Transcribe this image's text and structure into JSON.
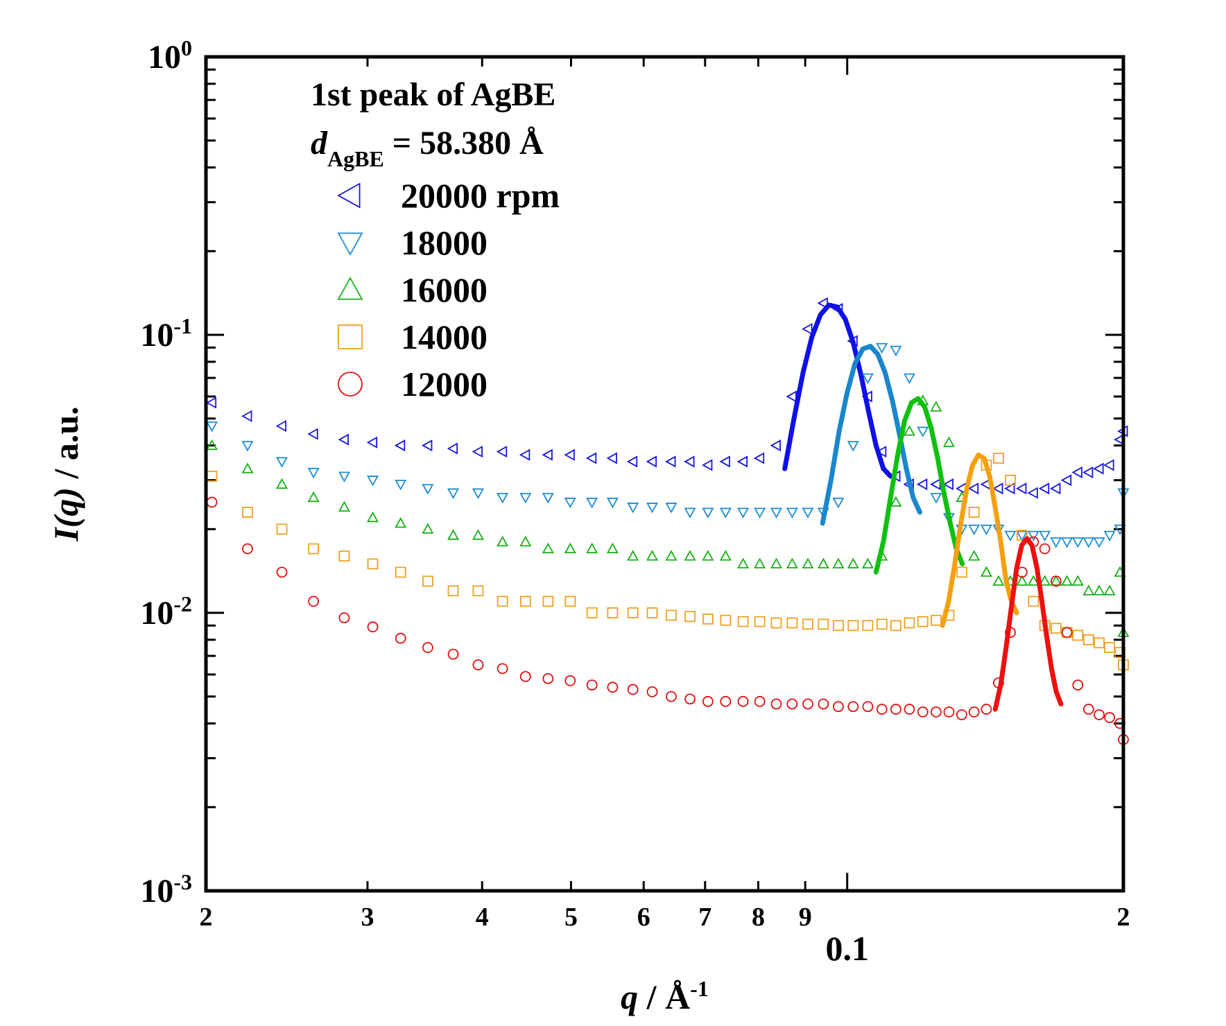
{
  "chart_data": {
    "type": "scatter",
    "x_scale": "log",
    "y_scale": "log",
    "xlim": [
      0.02,
      0.2
    ],
    "ylim": [
      0.001,
      1
    ],
    "xlabel_main": "q",
    "xlabel_unit": "Å",
    "xlabel_exp": "-1",
    "ylabel_main": "I(q)",
    "ylabel_rest": " / a.u.",
    "title_line1": "1st peak of AgBE",
    "title_line2_main": "d",
    "title_line2_sub": "AgBE",
    "title_line2_rest": " = 58.380 Å",
    "y_ticks": [
      {
        "value": 1,
        "label": "10",
        "exp": "0"
      },
      {
        "value": 0.1,
        "label": "10",
        "exp": "-1"
      },
      {
        "value": 0.01,
        "label": "10",
        "exp": "-2"
      },
      {
        "value": 0.001,
        "label": "10",
        "exp": "-3"
      }
    ],
    "x_ticks": [
      {
        "value": 0.02,
        "label": "2"
      },
      {
        "value": 0.03,
        "label": "3"
      },
      {
        "value": 0.04,
        "label": "4"
      },
      {
        "value": 0.05,
        "label": "5"
      },
      {
        "value": 0.06,
        "label": "6"
      },
      {
        "value": 0.07,
        "label": "7"
      },
      {
        "value": 0.08,
        "label": "8"
      },
      {
        "value": 0.09,
        "label": "9"
      },
      {
        "value": 0.2,
        "label": "2"
      }
    ],
    "x_major_label": {
      "value": 0.1,
      "label": "0.1"
    },
    "legend_placement": "top-left",
    "series": [
      {
        "name": "20000 rpm",
        "marker": "triangle-left",
        "color": "#1515e0",
        "fit_color": "#1010e8",
        "x": [
          0.0203,
          0.0222,
          0.0242,
          0.0262,
          0.0283,
          0.0304,
          0.0326,
          0.0349,
          0.0372,
          0.0396,
          0.0421,
          0.0446,
          0.0472,
          0.0499,
          0.0527,
          0.0555,
          0.0584,
          0.0613,
          0.0643,
          0.0674,
          0.0705,
          0.0737,
          0.077,
          0.0803,
          0.0837,
          0.0871,
          0.0906,
          0.0942,
          0.0978,
          0.1015,
          0.1053,
          0.1091,
          0.113,
          0.1169,
          0.1209,
          0.125,
          0.1291,
          0.1333,
          0.1375,
          0.1418,
          0.1462,
          0.1506,
          0.1551,
          0.1596,
          0.1642,
          0.1689,
          0.1736,
          0.1784,
          0.1833,
          0.1882,
          0.1932,
          0.1983,
          0.2
        ],
        "y": [
          0.057,
          0.051,
          0.047,
          0.044,
          0.042,
          0.041,
          0.04,
          0.04,
          0.039,
          0.038,
          0.038,
          0.037,
          0.037,
          0.037,
          0.036,
          0.036,
          0.035,
          0.035,
          0.035,
          0.035,
          0.034,
          0.035,
          0.035,
          0.036,
          0.04,
          0.06,
          0.105,
          0.13,
          0.124,
          0.095,
          0.06,
          0.038,
          0.031,
          0.029,
          0.029,
          0.029,
          0.029,
          0.028,
          0.028,
          0.029,
          0.028,
          0.028,
          0.028,
          0.027,
          0.028,
          0.028,
          0.03,
          0.032,
          0.032,
          0.033,
          0.034,
          0.042,
          0.045
        ],
        "fit_x": [
          0.0855,
          0.0875,
          0.0895,
          0.0915,
          0.0935,
          0.0955,
          0.0975,
          0.0995,
          0.1015,
          0.1035,
          0.1055,
          0.1075,
          0.1095,
          0.1115
        ],
        "fit_y": [
          0.033,
          0.05,
          0.073,
          0.098,
          0.118,
          0.128,
          0.126,
          0.114,
          0.094,
          0.072,
          0.053,
          0.04,
          0.033,
          0.031
        ]
      },
      {
        "name": "18000",
        "marker": "triangle-down",
        "color": "#1c8bd0",
        "fit_color": "#1a86cc",
        "x": [
          0.0203,
          0.0222,
          0.0242,
          0.0262,
          0.0283,
          0.0304,
          0.0326,
          0.0349,
          0.0372,
          0.0396,
          0.0421,
          0.0446,
          0.0472,
          0.0499,
          0.0527,
          0.0555,
          0.0584,
          0.0613,
          0.0643,
          0.0674,
          0.0705,
          0.0737,
          0.077,
          0.0803,
          0.0837,
          0.0871,
          0.0906,
          0.0942,
          0.0978,
          0.1015,
          0.1053,
          0.1091,
          0.113,
          0.1169,
          0.1209,
          0.125,
          0.1291,
          0.1333,
          0.1375,
          0.1418,
          0.1462,
          0.1506,
          0.1551,
          0.1596,
          0.1642,
          0.1689,
          0.1736,
          0.1784,
          0.1833,
          0.1882,
          0.1932,
          0.1983,
          0.2
        ],
        "y": [
          0.047,
          0.04,
          0.035,
          0.032,
          0.031,
          0.03,
          0.029,
          0.028,
          0.027,
          0.027,
          0.026,
          0.026,
          0.026,
          0.025,
          0.025,
          0.025,
          0.024,
          0.024,
          0.024,
          0.023,
          0.023,
          0.023,
          0.023,
          0.023,
          0.023,
          0.023,
          0.023,
          0.023,
          0.025,
          0.04,
          0.07,
          0.09,
          0.088,
          0.07,
          0.045,
          0.026,
          0.022,
          0.02,
          0.02,
          0.02,
          0.02,
          0.019,
          0.019,
          0.019,
          0.019,
          0.018,
          0.018,
          0.018,
          0.018,
          0.018,
          0.019,
          0.02,
          0.027
        ],
        "fit_x": [
          0.094,
          0.096,
          0.098,
          0.1,
          0.102,
          0.104,
          0.106,
          0.108,
          0.11,
          0.112,
          0.114,
          0.116,
          0.118,
          0.12
        ],
        "fit_y": [
          0.021,
          0.03,
          0.045,
          0.062,
          0.079,
          0.089,
          0.091,
          0.085,
          0.073,
          0.058,
          0.044,
          0.033,
          0.026,
          0.023
        ]
      },
      {
        "name": "16000",
        "marker": "triangle-up",
        "color": "#16b016",
        "fit_color": "#10c010",
        "x": [
          0.0203,
          0.0222,
          0.0242,
          0.0262,
          0.0283,
          0.0304,
          0.0326,
          0.0349,
          0.0372,
          0.0396,
          0.0421,
          0.0446,
          0.0472,
          0.0499,
          0.0527,
          0.0555,
          0.0584,
          0.0613,
          0.0643,
          0.0674,
          0.0705,
          0.0737,
          0.077,
          0.0803,
          0.0837,
          0.0871,
          0.0906,
          0.0942,
          0.0978,
          0.1015,
          0.1053,
          0.1091,
          0.113,
          0.1169,
          0.1209,
          0.125,
          0.1291,
          0.1333,
          0.1375,
          0.1418,
          0.1462,
          0.1506,
          0.1551,
          0.1596,
          0.1642,
          0.1689,
          0.1736,
          0.1784,
          0.1833,
          0.1882,
          0.1932,
          0.1983,
          0.2
        ],
        "y": [
          0.04,
          0.033,
          0.029,
          0.026,
          0.024,
          0.022,
          0.021,
          0.02,
          0.019,
          0.019,
          0.018,
          0.018,
          0.017,
          0.017,
          0.017,
          0.017,
          0.016,
          0.016,
          0.016,
          0.016,
          0.016,
          0.016,
          0.015,
          0.015,
          0.015,
          0.015,
          0.015,
          0.015,
          0.015,
          0.015,
          0.015,
          0.016,
          0.025,
          0.045,
          0.058,
          0.055,
          0.041,
          0.026,
          0.016,
          0.014,
          0.013,
          0.013,
          0.013,
          0.013,
          0.013,
          0.013,
          0.013,
          0.013,
          0.012,
          0.012,
          0.012,
          0.014,
          0.0085
        ],
        "fit_x": [
          0.1075,
          0.1095,
          0.1115,
          0.1135,
          0.1155,
          0.1175,
          0.1195,
          0.1215,
          0.1235,
          0.1255,
          0.1275,
          0.1295,
          0.1315,
          0.1335
        ],
        "fit_y": [
          0.014,
          0.018,
          0.026,
          0.037,
          0.049,
          0.057,
          0.059,
          0.055,
          0.046,
          0.036,
          0.027,
          0.021,
          0.017,
          0.015
        ]
      },
      {
        "name": "14000",
        "marker": "square",
        "color": "#f0a020",
        "fit_color": "#f5a010",
        "x": [
          0.0203,
          0.0222,
          0.0242,
          0.0262,
          0.0283,
          0.0304,
          0.0326,
          0.0349,
          0.0372,
          0.0396,
          0.0421,
          0.0446,
          0.0472,
          0.0499,
          0.0527,
          0.0555,
          0.0584,
          0.0613,
          0.0643,
          0.0674,
          0.0705,
          0.0737,
          0.077,
          0.0803,
          0.0837,
          0.0871,
          0.0906,
          0.0942,
          0.0978,
          0.1015,
          0.1053,
          0.1091,
          0.113,
          0.1169,
          0.1209,
          0.125,
          0.1291,
          0.1333,
          0.1375,
          0.1418,
          0.1462,
          0.1506,
          0.1551,
          0.1596,
          0.1642,
          0.1689,
          0.1736,
          0.1784,
          0.1833,
          0.1882,
          0.1932,
          0.1983,
          0.2
        ],
        "y": [
          0.031,
          0.023,
          0.02,
          0.017,
          0.016,
          0.015,
          0.014,
          0.013,
          0.012,
          0.012,
          0.011,
          0.011,
          0.011,
          0.011,
          0.01,
          0.01,
          0.01,
          0.01,
          0.0098,
          0.0097,
          0.0095,
          0.0094,
          0.0093,
          0.0093,
          0.0092,
          0.0092,
          0.0091,
          0.0091,
          0.009,
          0.009,
          0.009,
          0.0091,
          0.009,
          0.0092,
          0.0093,
          0.0094,
          0.0098,
          0.014,
          0.023,
          0.034,
          0.036,
          0.03,
          0.019,
          0.011,
          0.009,
          0.0088,
          0.0085,
          0.0083,
          0.008,
          0.0078,
          0.0075,
          0.0072,
          0.0065
        ],
        "fit_x": [
          0.127,
          0.129,
          0.131,
          0.133,
          0.135,
          0.137,
          0.139,
          0.141,
          0.143,
          0.145,
          0.147,
          0.149,
          0.151,
          0.153
        ],
        "fit_y": [
          0.009,
          0.011,
          0.015,
          0.021,
          0.028,
          0.034,
          0.037,
          0.036,
          0.031,
          0.024,
          0.018,
          0.013,
          0.011,
          0.01
        ]
      },
      {
        "name": "12000",
        "marker": "circle",
        "color": "#e01010",
        "fit_color": "#ee1010",
        "x": [
          0.0203,
          0.0222,
          0.0242,
          0.0262,
          0.0283,
          0.0304,
          0.0326,
          0.0349,
          0.0372,
          0.0396,
          0.0421,
          0.0446,
          0.0472,
          0.0499,
          0.0527,
          0.0555,
          0.0584,
          0.0613,
          0.0643,
          0.0674,
          0.0705,
          0.0737,
          0.077,
          0.0803,
          0.0837,
          0.0871,
          0.0906,
          0.0942,
          0.0978,
          0.1015,
          0.1053,
          0.1091,
          0.113,
          0.1169,
          0.1209,
          0.125,
          0.1291,
          0.1333,
          0.1375,
          0.1418,
          0.1462,
          0.1506,
          0.1551,
          0.1596,
          0.1642,
          0.1689,
          0.1736,
          0.1784,
          0.1833,
          0.1882,
          0.1932,
          0.1983,
          0.2
        ],
        "y": [
          0.025,
          0.017,
          0.014,
          0.011,
          0.0096,
          0.0089,
          0.0081,
          0.0075,
          0.0071,
          0.0065,
          0.0063,
          0.0059,
          0.0058,
          0.0057,
          0.0055,
          0.0054,
          0.0053,
          0.0052,
          0.005,
          0.0049,
          0.0048,
          0.0048,
          0.0048,
          0.0048,
          0.0047,
          0.0047,
          0.0047,
          0.0047,
          0.0046,
          0.0046,
          0.0046,
          0.0045,
          0.0045,
          0.0045,
          0.0044,
          0.0044,
          0.0044,
          0.0043,
          0.0044,
          0.0045,
          0.0056,
          0.0085,
          0.014,
          0.018,
          0.017,
          0.013,
          0.0085,
          0.0055,
          0.0045,
          0.0043,
          0.0042,
          0.004,
          0.0035
        ],
        "fit_x": [
          0.145,
          0.147,
          0.149,
          0.151,
          0.153,
          0.155,
          0.157,
          0.159,
          0.161,
          0.163,
          0.165,
          0.167,
          0.169,
          0.171
        ],
        "fit_y": [
          0.0045,
          0.0055,
          0.0075,
          0.0105,
          0.0145,
          0.0175,
          0.0185,
          0.0175,
          0.0145,
          0.011,
          0.0082,
          0.0063,
          0.0052,
          0.0047
        ]
      }
    ]
  }
}
